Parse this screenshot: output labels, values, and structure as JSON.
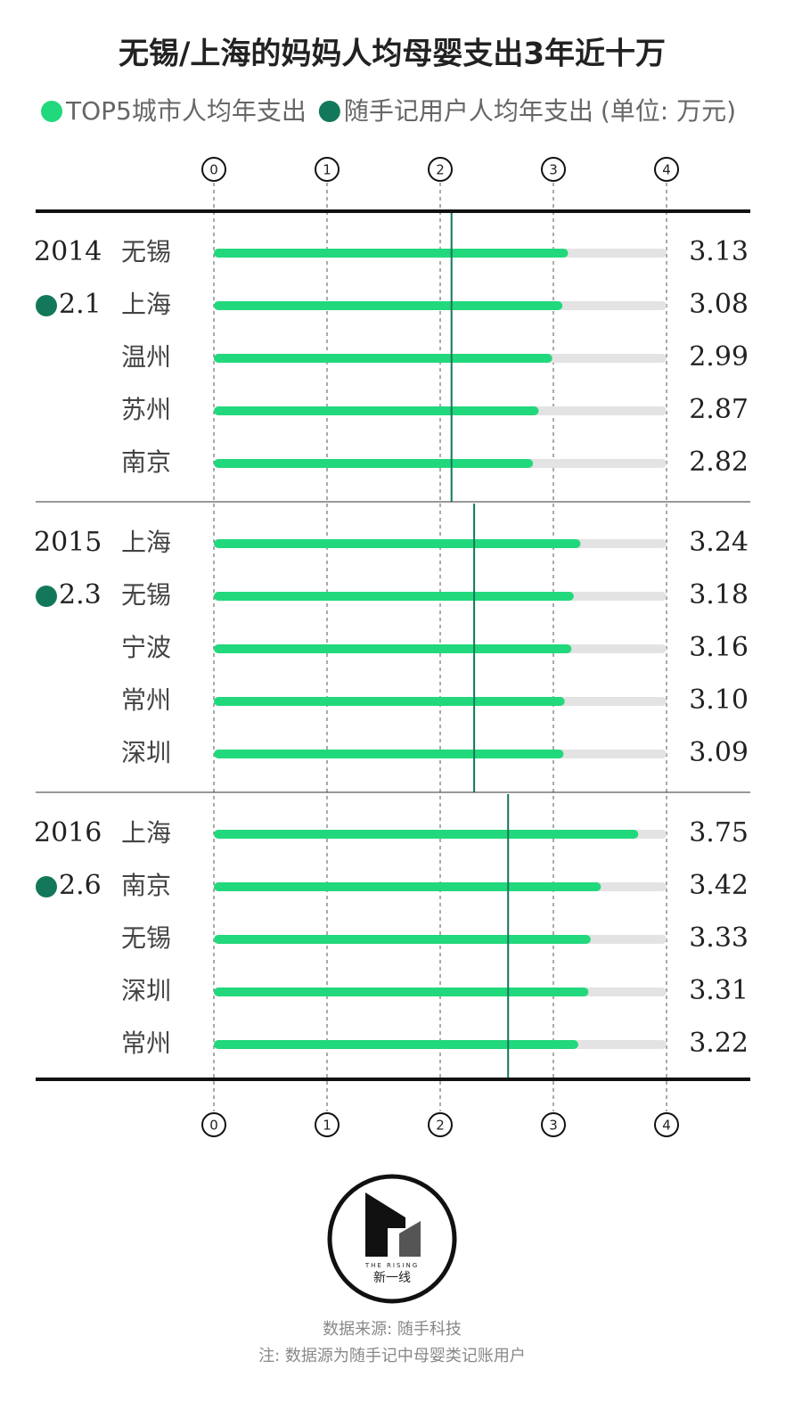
{
  "chart_data": {
    "type": "bar",
    "orientation": "horizontal",
    "title": "无锡/上海的妈妈人均母婴支出3年近十万",
    "unit_note": "(单位: 万元)",
    "series": [
      {
        "name": "TOP5城市人均年支出",
        "color": "#22d87c"
      },
      {
        "name": "随手记用户人均年支出",
        "color": "#13785a"
      }
    ],
    "groups": [
      {
        "year": "2014",
        "average": 2.1,
        "categories": [
          "无锡",
          "上海",
          "温州",
          "苏州",
          "南京"
        ],
        "values": [
          3.13,
          3.08,
          2.99,
          2.87,
          2.82
        ],
        "value_labels": [
          "3.13",
          "3.08",
          "2.99",
          "2.87",
          "2.82"
        ]
      },
      {
        "year": "2015",
        "average": 2.3,
        "categories": [
          "上海",
          "无锡",
          "宁波",
          "常州",
          "深圳"
        ],
        "values": [
          3.24,
          3.18,
          3.16,
          3.1,
          3.09
        ],
        "value_labels": [
          "3.24",
          "3.18",
          "3.16",
          "3.10",
          "3.09"
        ]
      },
      {
        "year": "2016",
        "average": 2.6,
        "categories": [
          "上海",
          "南京",
          "无锡",
          "深圳",
          "常州"
        ],
        "values": [
          3.75,
          3.42,
          3.33,
          3.31,
          3.22
        ],
        "value_labels": [
          "3.75",
          "3.42",
          "3.33",
          "3.31",
          "3.22"
        ]
      }
    ],
    "xlim": [
      0,
      4
    ],
    "xticks": [
      0,
      1,
      2,
      3,
      4
    ],
    "grid": true
  },
  "logo": {
    "subtext": "THE RISING",
    "text": "新一线"
  },
  "footer": {
    "source": "数据来源: 随手科技",
    "note": "注: 数据源为随手记中母婴类记账用户"
  }
}
